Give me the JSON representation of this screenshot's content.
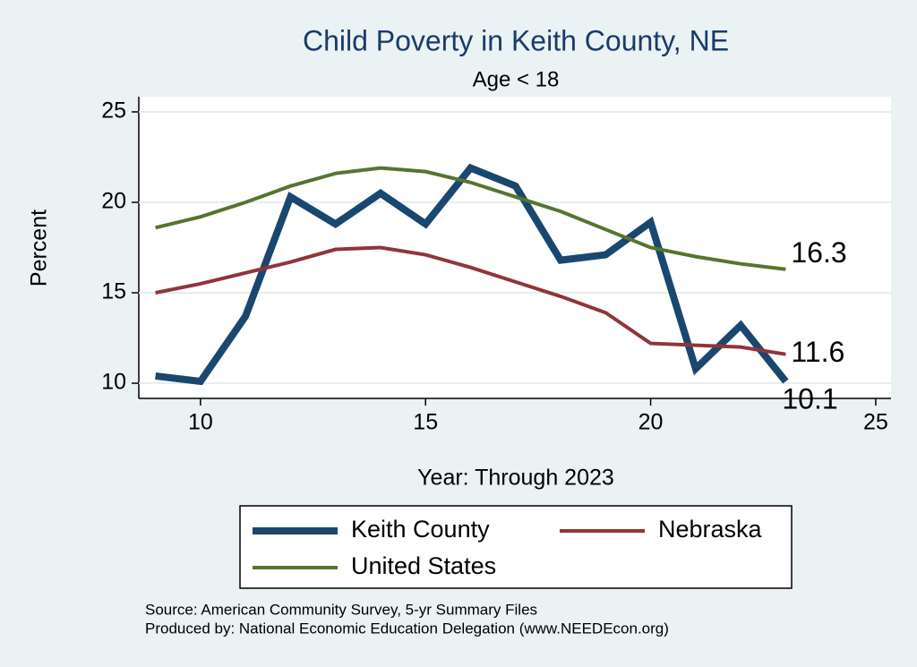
{
  "chart_data": {
    "type": "line",
    "title": "Child Poverty in Keith County, NE",
    "subtitle": "Age < 18",
    "x_label": "Year: Through 2023",
    "y_label": "Percent",
    "x": [
      9,
      10,
      11,
      12,
      13,
      14,
      15,
      16,
      17,
      18,
      19,
      20,
      21,
      22,
      23
    ],
    "series": [
      {
        "name": "Keith County",
        "color": "#1a476f",
        "values": [
          10.4,
          10.1,
          13.7,
          20.3,
          18.8,
          20.5,
          18.8,
          21.9,
          20.9,
          16.8,
          17.1,
          18.9,
          10.8,
          13.2,
          10.1
        ]
      },
      {
        "name": "Nebraska",
        "color": "#90353b",
        "values": [
          15.0,
          15.5,
          16.1,
          16.7,
          17.4,
          17.5,
          17.1,
          16.4,
          15.6,
          14.8,
          13.9,
          12.2,
          12.1,
          12.0,
          11.6
        ]
      },
      {
        "name": "United States",
        "color": "#55752f",
        "values": [
          18.6,
          19.2,
          20.0,
          20.9,
          21.6,
          21.9,
          21.7,
          21.1,
          20.3,
          19.5,
          18.5,
          17.5,
          17.0,
          16.6,
          16.3
        ]
      }
    ],
    "xlim": [
      8.63,
      25.34
    ],
    "xticks": [
      10,
      15,
      20,
      25
    ],
    "ylim": [
      9.16,
      25.84
    ],
    "yticks": [
      10,
      15,
      20,
      25
    ],
    "grid": true,
    "notes": [
      "Source: American Community Survey, 5-yr Summary Files",
      "Produced by: National Economic Education Delegation (www.NEEDEcon.org)"
    ]
  }
}
